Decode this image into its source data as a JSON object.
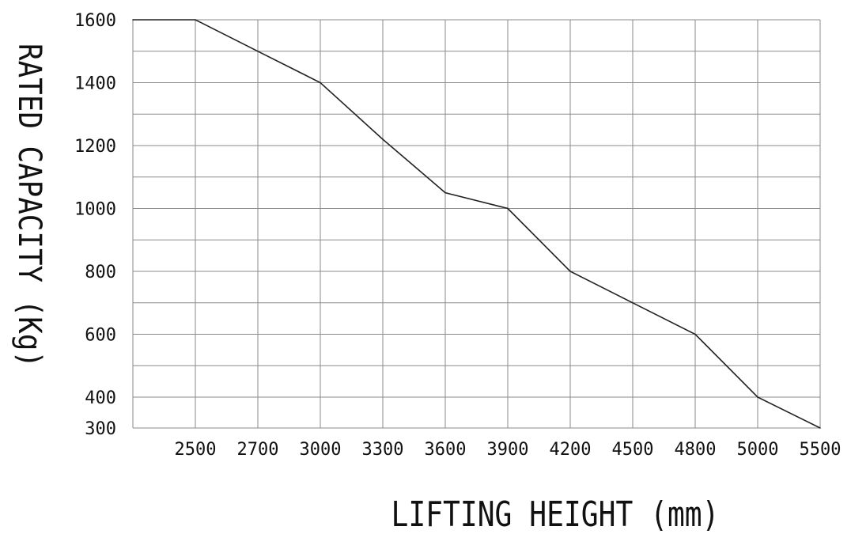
{
  "chart_data": {
    "type": "line",
    "title": "",
    "xlabel": "LIFTING HEIGHT (mm)",
    "ylabel": "RATED CAPACITY (Kg)",
    "x_categories": [
      "",
      "2500",
      "2700",
      "3000",
      "3300",
      "3600",
      "3900",
      "4200",
      "4500",
      "4800",
      "5000",
      "5500"
    ],
    "y_ticks": [
      300,
      400,
      600,
      800,
      1000,
      1200,
      1400,
      1600
    ],
    "ylim": [
      300,
      1600
    ],
    "grid": true,
    "series": [
      {
        "values": [
          1600,
          1600,
          1500,
          1400,
          1220,
          1050,
          1000,
          800,
          700,
          600,
          400,
          300
        ]
      }
    ]
  },
  "colors": {
    "line": "#222222",
    "grid": "#8a8a8a",
    "text": "#111111"
  }
}
